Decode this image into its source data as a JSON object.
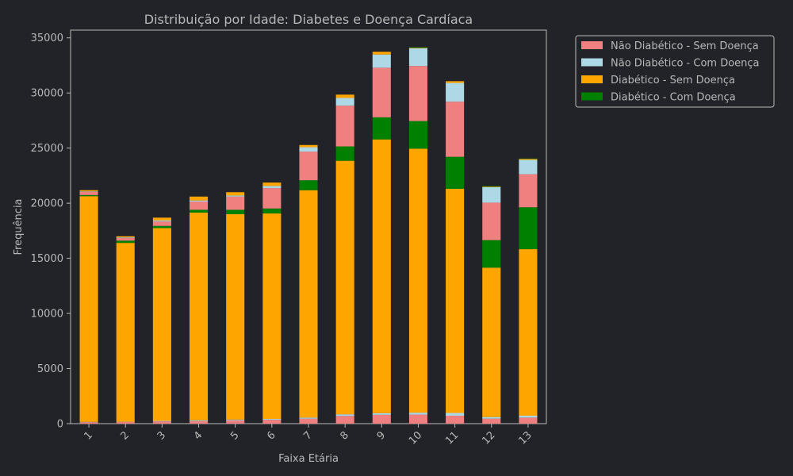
{
  "chart_data": {
    "type": "bar",
    "stacked": true,
    "title": "Distribuição por Idade: Diabetes e Doença Cardíaca",
    "xlabel": "Faixa Etária",
    "ylabel": "Frequência",
    "categories": [
      "1",
      "2",
      "3",
      "4",
      "5",
      "6",
      "7",
      "8",
      "9",
      "10",
      "11",
      "12",
      "13"
    ],
    "ylim": [
      0,
      35700
    ],
    "yticks": [
      0,
      5000,
      10000,
      15000,
      20000,
      25000,
      30000,
      35000
    ],
    "grid": false,
    "legend_position": "outside-top-right",
    "stack_order_bottom_to_top": [
      "Não Diabético - Sem Doença",
      "Não Diabético - Com Doença",
      "Diabético - Sem Doença",
      "Diabético - Com Doença",
      "Não Diabético - Sem Doença",
      "Não Diabético - Com Doença",
      "Diabético - Sem Doença",
      "Diabético - Com Doença"
    ],
    "layers": [
      {
        "name": "Não Diabético - Sem Doença",
        "color": "#f08080",
        "values": [
          130,
          150,
          200,
          230,
          300,
          350,
          450,
          700,
          800,
          820,
          720,
          450,
          550
        ]
      },
      {
        "name": "Não Diabético - Com Doença",
        "color": "#add8e6",
        "values": [
          30,
          20,
          50,
          80,
          70,
          80,
          100,
          150,
          150,
          180,
          250,
          150,
          170
        ]
      },
      {
        "name": "Diabético - Sem Doença",
        "color": "#ffa500",
        "values": [
          20480,
          16230,
          17490,
          18840,
          18630,
          18640,
          20630,
          23000,
          24840,
          23950,
          20340,
          13550,
          15110
        ]
      },
      {
        "name": "Diabético - Com Doença",
        "color": "#008000",
        "values": [
          100,
          200,
          200,
          250,
          400,
          450,
          900,
          1300,
          2000,
          2500,
          2900,
          2500,
          3800
        ]
      },
      {
        "name": "Não Diabético - Sem Doença",
        "color": "#f08080",
        "values": [
          300,
          250,
          400,
          750,
          1200,
          1850,
          2600,
          3700,
          4500,
          5000,
          5000,
          3400,
          3000
        ]
      },
      {
        "name": "Não Diabético - Com Doença",
        "color": "#add8e6",
        "values": [
          40,
          50,
          100,
          100,
          100,
          200,
          400,
          700,
          1200,
          1600,
          1700,
          1400,
          1300
        ]
      },
      {
        "name": "Diabético - Sem Doença",
        "color": "#ffa500",
        "values": [
          100,
          100,
          250,
          350,
          300,
          300,
          200,
          300,
          250,
          50,
          160,
          50,
          90
        ]
      },
      {
        "name": "Diabético - Com Doença",
        "color": "#008000",
        "values": [
          0,
          0,
          0,
          0,
          0,
          0,
          0,
          0,
          0,
          50,
          0,
          50,
          30
        ]
      }
    ],
    "legend": [
      {
        "label": "Não Diabético - Sem Doença",
        "color": "#f08080"
      },
      {
        "label": "Não Diabético - Com Doença",
        "color": "#add8e6"
      },
      {
        "label": "Diabético - Sem Doença",
        "color": "#ffa500"
      },
      {
        "label": "Diabético - Com Doença",
        "color": "#008000"
      }
    ]
  }
}
